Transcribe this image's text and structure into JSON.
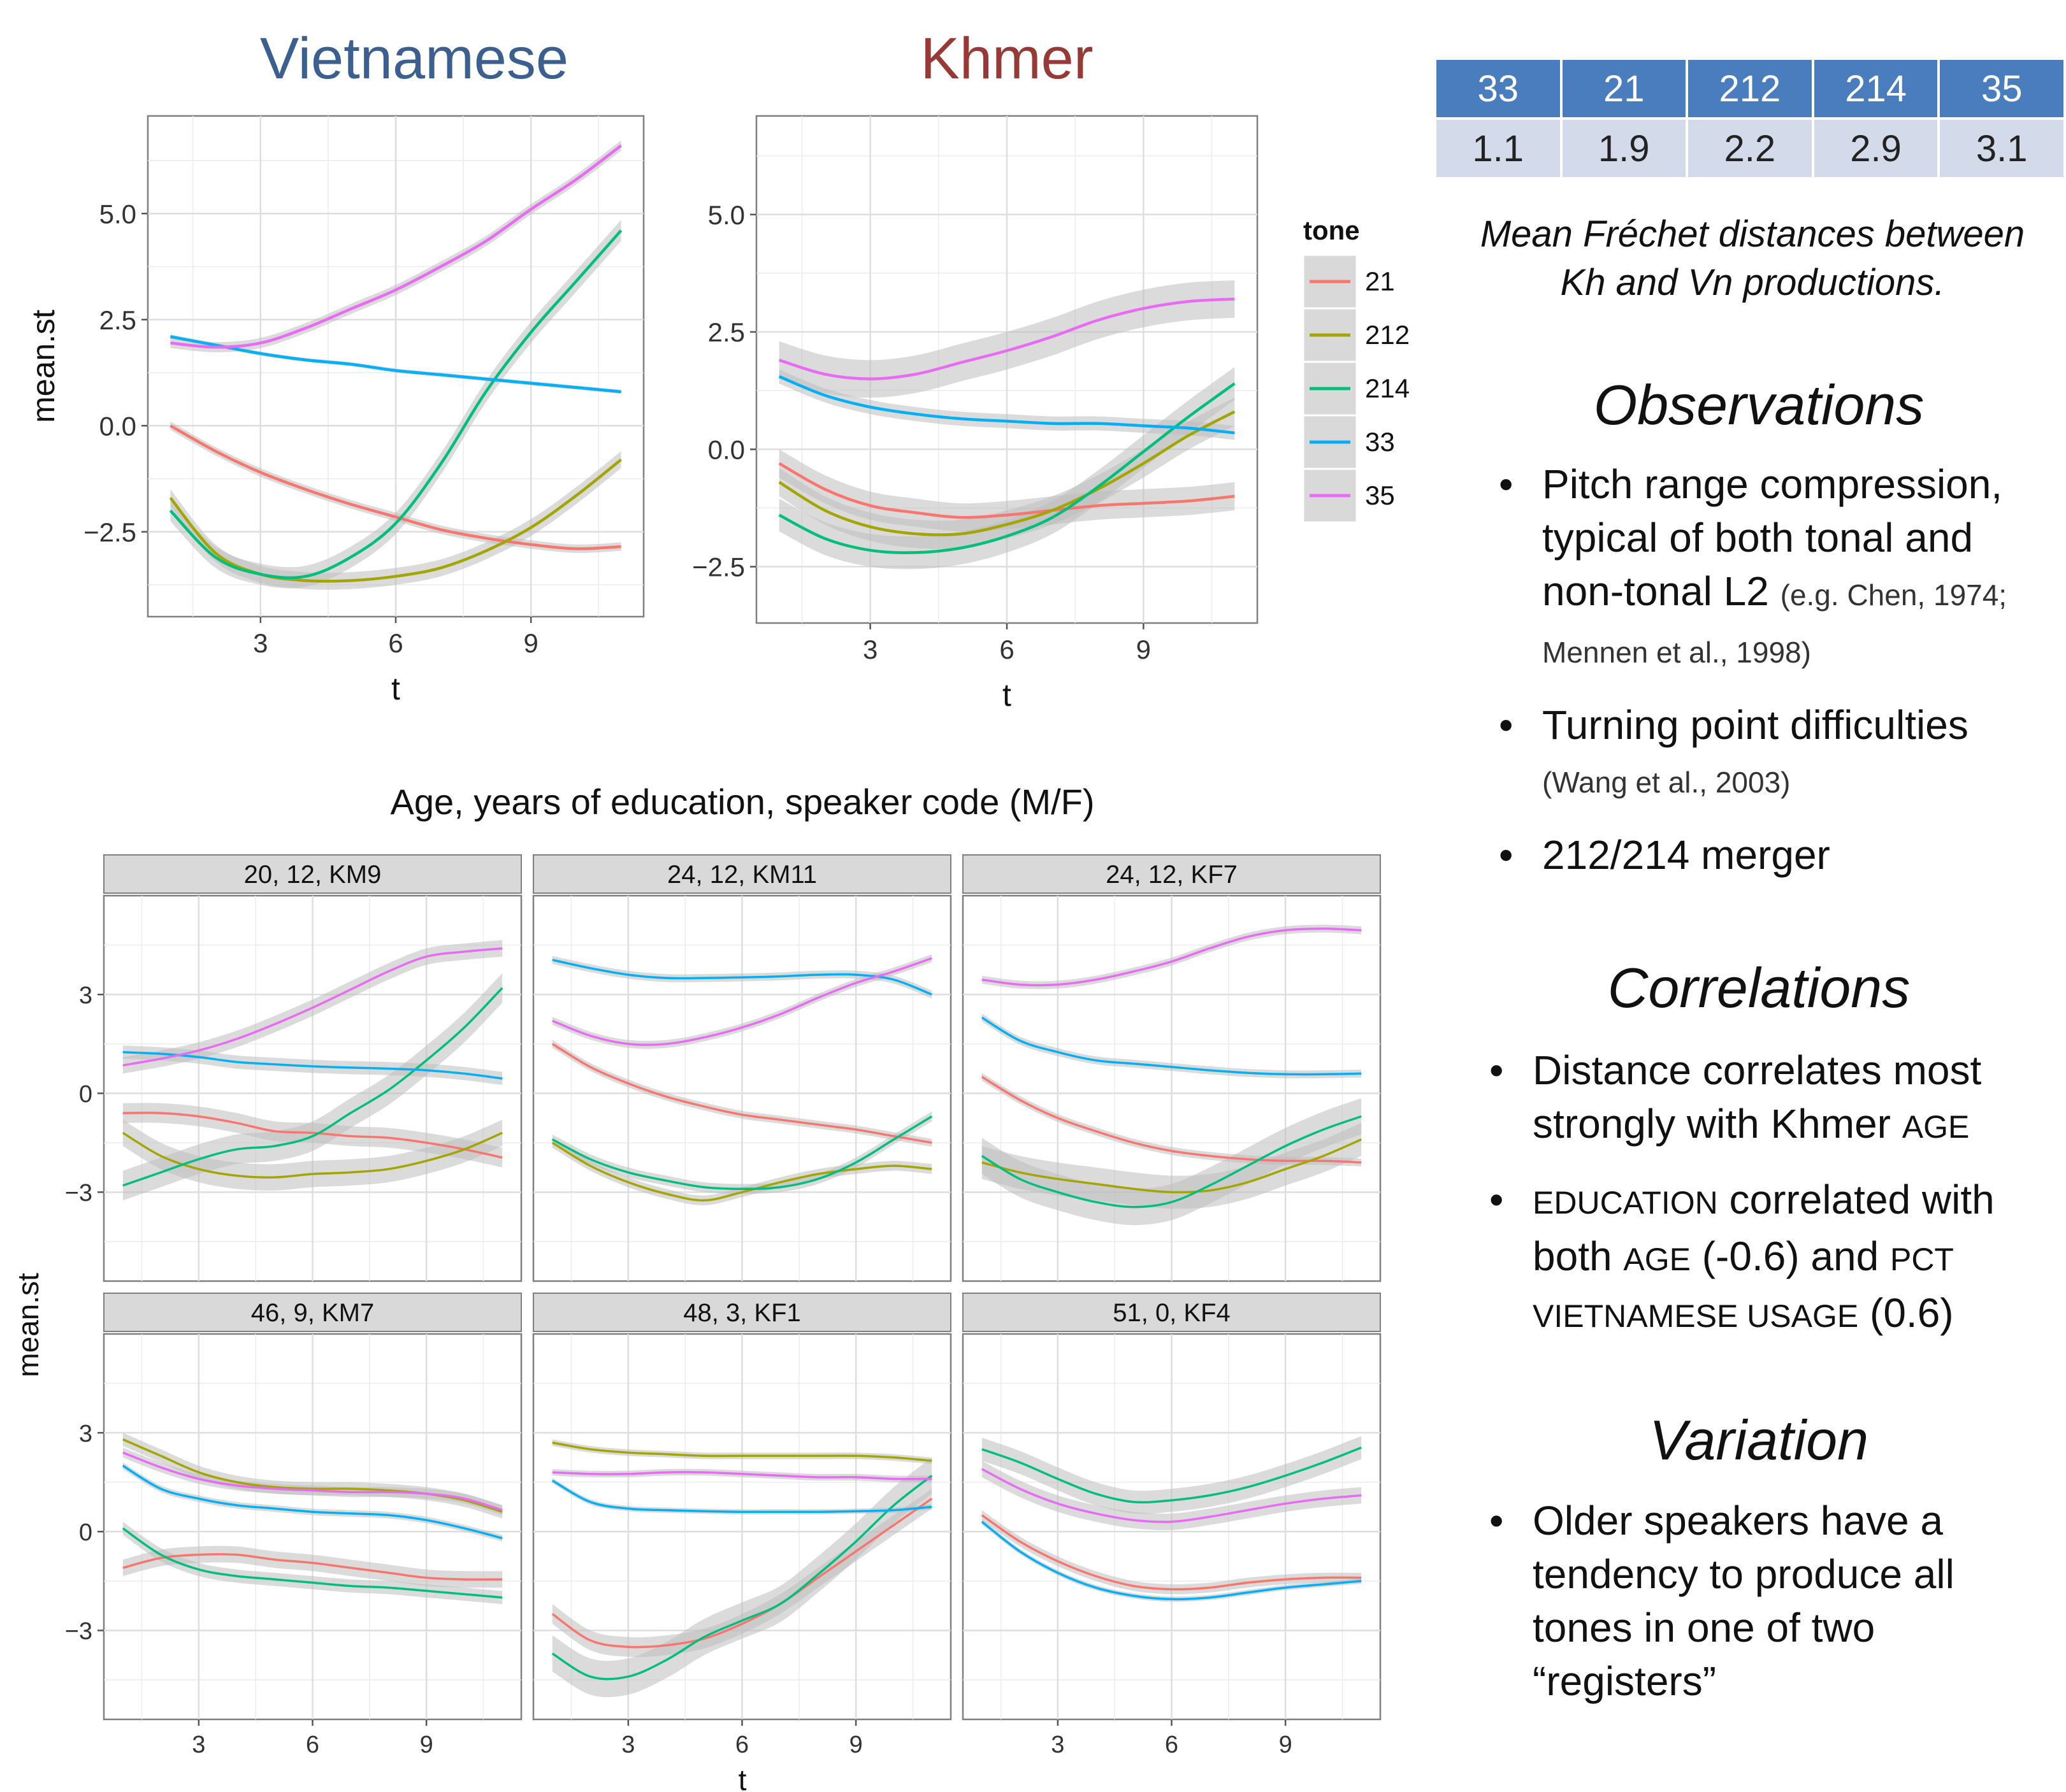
{
  "titles": {
    "vietnamese": "Vietnamese",
    "khmer": "Khmer",
    "facet_main": "Age, years of education, speaker code (M/F)"
  },
  "colors": {
    "vietnamese": "#3b5f8e",
    "khmer": "#973a36",
    "table_header": "#4a7dbd",
    "table_body": "#d3daea",
    "21": "#f8766d",
    "212": "#a3a500",
    "214": "#00bf7d",
    "33": "#00b0f6",
    "35": "#e76bf3"
  },
  "legend": {
    "title": "tone",
    "items": [
      "21",
      "212",
      "214",
      "33",
      "35"
    ]
  },
  "table": {
    "headers": [
      "33",
      "21",
      "212",
      "214",
      "35"
    ],
    "values": [
      "1.1",
      "1.9",
      "2.2",
      "2.9",
      "3.1"
    ]
  },
  "caption": {
    "line1": "Mean Fréchet distances between",
    "line2": "Kh and Vn productions."
  },
  "observations": {
    "title": "Observations",
    "b1_text": "Pitch range compression, typical of both tonal and non-tonal L2 ",
    "b1_cite": "(e.g. Chen, 1974; Mennen et al., 1998)",
    "b2_text": "Turning point difficulties ",
    "b2_cite": "(Wang et al., 2003)",
    "b3_text": "212/214 merger"
  },
  "correlations": {
    "title": "Correlations",
    "b1_pre": "Distance correlates most strongly with Khmer ",
    "b1_sc": "AGE",
    "b2_sc1": "EDUCATION",
    "b2_mid": " correlated with both ",
    "b2_sc2": "AGE",
    "b2_mid2": " (-0.6) and ",
    "b2_sc3": "PCT VIETNAMESE USAGE",
    "b2_end": " (0.6)"
  },
  "variation": {
    "title": "Variation",
    "b1_text": "Older speakers have a tendency to produce all tones in one of two “registers”"
  },
  "chart_data": [
    {
      "type": "line",
      "title": "Vietnamese",
      "xlabel": "t",
      "ylabel": "mean.st",
      "xlim": [
        0.5,
        11.5
      ],
      "ylim": [
        -4.5,
        7.3
      ],
      "xticks": [
        3,
        6,
        9
      ],
      "yticks": [
        -2.5,
        0.0,
        2.5,
        5.0
      ],
      "ytick_labels": [
        "−2.5",
        "0.0",
        "2.5",
        "5.0"
      ],
      "legend_position": "right",
      "grid": true,
      "series": [
        {
          "name": "21",
          "x": [
            1,
            2,
            3,
            4,
            5,
            6,
            7,
            8,
            9,
            10,
            11
          ],
          "y": [
            0.0,
            -0.6,
            -1.1,
            -1.5,
            -1.85,
            -2.15,
            -2.45,
            -2.65,
            -2.8,
            -2.9,
            -2.85
          ],
          "band": 0.1
        },
        {
          "name": "212",
          "x": [
            1,
            2,
            3,
            4,
            5,
            6,
            7,
            8,
            9,
            10,
            11
          ],
          "y": [
            -1.7,
            -3.0,
            -3.5,
            -3.65,
            -3.65,
            -3.55,
            -3.35,
            -2.95,
            -2.4,
            -1.65,
            -0.8
          ],
          "band": 0.2
        },
        {
          "name": "214",
          "x": [
            1,
            2,
            3,
            4,
            5,
            6,
            7,
            8,
            9,
            10,
            11
          ],
          "y": [
            -2.0,
            -3.1,
            -3.5,
            -3.55,
            -3.1,
            -2.3,
            -0.9,
            0.8,
            2.2,
            3.4,
            4.6
          ],
          "band": 0.25
        },
        {
          "name": "33",
          "x": [
            1,
            2,
            3,
            4,
            5,
            6,
            7,
            8,
            9,
            10,
            11
          ],
          "y": [
            2.1,
            1.9,
            1.7,
            1.55,
            1.45,
            1.3,
            1.2,
            1.1,
            1.0,
            0.9,
            0.8
          ],
          "band": 0.05
        },
        {
          "name": "35",
          "x": [
            1,
            2,
            3,
            4,
            5,
            6,
            7,
            8,
            9,
            10,
            11
          ],
          "y": [
            1.95,
            1.85,
            1.95,
            2.3,
            2.75,
            3.2,
            3.75,
            4.35,
            5.1,
            5.8,
            6.6
          ],
          "band": 0.12
        }
      ]
    },
    {
      "type": "line",
      "title": "Khmer",
      "xlabel": "t",
      "ylabel": "",
      "xlim": [
        0.5,
        11.5
      ],
      "ylim": [
        -3.7,
        7.1
      ],
      "xticks": [
        3,
        6,
        9
      ],
      "yticks": [
        -2.5,
        0.0,
        2.5,
        5.0
      ],
      "ytick_labels": [
        "−2.5",
        "0.0",
        "2.5",
        "5.0"
      ],
      "legend_position": "right",
      "grid": true,
      "series": [
        {
          "name": "21",
          "x": [
            1,
            2,
            3,
            4,
            5,
            6,
            7,
            8,
            9,
            10,
            11
          ],
          "y": [
            -0.3,
            -0.85,
            -1.2,
            -1.35,
            -1.45,
            -1.4,
            -1.3,
            -1.2,
            -1.15,
            -1.1,
            -1.0
          ],
          "band": 0.3
        },
        {
          "name": "212",
          "x": [
            1,
            2,
            3,
            4,
            5,
            6,
            7,
            8,
            9,
            10,
            11
          ],
          "y": [
            -0.7,
            -1.3,
            -1.65,
            -1.8,
            -1.8,
            -1.6,
            -1.3,
            -0.85,
            -0.3,
            0.3,
            0.8
          ],
          "band": 0.3
        },
        {
          "name": "214",
          "x": [
            1,
            2,
            3,
            4,
            5,
            6,
            7,
            8,
            9,
            10,
            11
          ],
          "y": [
            -1.4,
            -1.9,
            -2.15,
            -2.2,
            -2.1,
            -1.85,
            -1.45,
            -0.8,
            -0.05,
            0.7,
            1.4
          ],
          "band": 0.35
        },
        {
          "name": "33",
          "x": [
            1,
            2,
            3,
            4,
            5,
            6,
            7,
            8,
            9,
            10,
            11
          ],
          "y": [
            1.55,
            1.15,
            0.9,
            0.75,
            0.65,
            0.6,
            0.55,
            0.55,
            0.5,
            0.45,
            0.35
          ],
          "band": 0.15
        },
        {
          "name": "35",
          "x": [
            1,
            2,
            3,
            4,
            5,
            6,
            7,
            8,
            9,
            10,
            11
          ],
          "y": [
            1.9,
            1.6,
            1.5,
            1.6,
            1.85,
            2.1,
            2.4,
            2.75,
            3.0,
            3.15,
            3.2
          ],
          "band": 0.4
        }
      ]
    },
    {
      "type": "line",
      "title": "Age, years of education, speaker code (M/F)",
      "xlabel": "t",
      "ylabel": "mean.st",
      "xlim": [
        0.5,
        11.5
      ],
      "ylim": [
        -5.7,
        6.0
      ],
      "xticks": [
        3,
        6,
        9
      ],
      "yticks": [
        -3,
        0,
        3
      ],
      "ytick_labels": [
        "−3",
        "0",
        "3"
      ],
      "facets": [
        {
          "label": "20, 12, KM9",
          "series": [
            {
              "name": "21",
              "y": [
                -0.6,
                -0.6,
                -0.7,
                -0.9,
                -1.15,
                -1.2,
                -1.3,
                -1.35,
                -1.5,
                -1.7,
                -1.95
              ],
              "band": 0.3
            },
            {
              "name": "212",
              "y": [
                -1.2,
                -1.9,
                -2.3,
                -2.5,
                -2.55,
                -2.45,
                -2.4,
                -2.3,
                -2.05,
                -1.7,
                -1.2
              ],
              "band": 0.4
            },
            {
              "name": "214",
              "y": [
                -2.8,
                -2.4,
                -2.0,
                -1.7,
                -1.6,
                -1.3,
                -0.6,
                0.1,
                1.0,
                2.0,
                3.2
              ],
              "band": 0.45
            },
            {
              "name": "33",
              "y": [
                1.25,
                1.2,
                1.1,
                0.95,
                0.88,
                0.82,
                0.78,
                0.75,
                0.7,
                0.6,
                0.45
              ],
              "band": 0.2
            },
            {
              "name": "35",
              "y": [
                0.85,
                1.05,
                1.3,
                1.65,
                2.1,
                2.6,
                3.15,
                3.7,
                4.15,
                4.3,
                4.4
              ],
              "band": 0.25
            }
          ]
        },
        {
          "label": "24, 12, KM11",
          "series": [
            {
              "name": "21",
              "y": [
                1.5,
                0.8,
                0.3,
                -0.1,
                -0.4,
                -0.65,
                -0.8,
                -0.95,
                -1.1,
                -1.3,
                -1.5
              ],
              "band": 0.12
            },
            {
              "name": "212",
              "y": [
                -1.5,
                -2.2,
                -2.7,
                -3.05,
                -3.25,
                -3.0,
                -2.7,
                -2.45,
                -2.3,
                -2.2,
                -2.3
              ],
              "band": 0.15
            },
            {
              "name": "214",
              "y": [
                -1.4,
                -2.0,
                -2.4,
                -2.65,
                -2.85,
                -2.9,
                -2.85,
                -2.6,
                -2.1,
                -1.4,
                -0.7
              ],
              "band": 0.15
            },
            {
              "name": "33",
              "y": [
                4.05,
                3.8,
                3.6,
                3.5,
                3.5,
                3.52,
                3.55,
                3.6,
                3.6,
                3.45,
                3.0
              ],
              "band": 0.12
            },
            {
              "name": "35",
              "y": [
                2.2,
                1.75,
                1.5,
                1.5,
                1.7,
                2.0,
                2.4,
                2.9,
                3.35,
                3.7,
                4.1
              ],
              "band": 0.12
            }
          ]
        },
        {
          "label": "24, 12, KF7",
          "series": [
            {
              "name": "21",
              "y": [
                0.5,
                -0.2,
                -0.75,
                -1.15,
                -1.5,
                -1.75,
                -1.9,
                -2.0,
                -2.05,
                -2.05,
                -2.1
              ],
              "band": 0.12
            },
            {
              "name": "212",
              "y": [
                -2.1,
                -2.4,
                -2.6,
                -2.75,
                -2.9,
                -3.0,
                -2.95,
                -2.7,
                -2.3,
                -1.9,
                -1.4
              ],
              "band": 0.5
            },
            {
              "name": "214",
              "y": [
                -1.9,
                -2.6,
                -3.0,
                -3.3,
                -3.45,
                -3.3,
                -2.8,
                -2.2,
                -1.6,
                -1.1,
                -0.7
              ],
              "band": 0.55
            },
            {
              "name": "33",
              "y": [
                2.3,
                1.6,
                1.25,
                1.0,
                0.9,
                0.8,
                0.7,
                0.62,
                0.58,
                0.58,
                0.6
              ],
              "band": 0.12
            },
            {
              "name": "35",
              "y": [
                3.45,
                3.3,
                3.3,
                3.45,
                3.7,
                4.0,
                4.4,
                4.75,
                4.95,
                5.0,
                4.95
              ],
              "band": 0.12
            }
          ]
        },
        {
          "label": "46,  9, KM7",
          "series": [
            {
              "name": "21",
              "y": [
                -1.1,
                -0.8,
                -0.7,
                -0.7,
                -0.85,
                -0.95,
                -1.1,
                -1.25,
                -1.4,
                -1.45,
                -1.45
              ],
              "band": 0.25
            },
            {
              "name": "212",
              "y": [
                2.8,
                2.3,
                1.8,
                1.5,
                1.35,
                1.3,
                1.3,
                1.25,
                1.15,
                0.95,
                0.6
              ],
              "band": 0.2
            },
            {
              "name": "214",
              "y": [
                0.1,
                -0.7,
                -1.15,
                -1.35,
                -1.45,
                -1.55,
                -1.65,
                -1.7,
                -1.8,
                -1.9,
                -2.0
              ],
              "band": 0.2
            },
            {
              "name": "33",
              "y": [
                2.0,
                1.3,
                1.0,
                0.8,
                0.7,
                0.6,
                0.55,
                0.5,
                0.35,
                0.1,
                -0.2
              ],
              "band": 0.1
            },
            {
              "name": "35",
              "y": [
                2.4,
                1.95,
                1.6,
                1.4,
                1.3,
                1.25,
                1.2,
                1.2,
                1.15,
                1.0,
                0.65
              ],
              "band": 0.15
            }
          ]
        },
        {
          "label": "48,  3, KF1",
          "series": [
            {
              "name": "21",
              "y": [
                -2.5,
                -3.3,
                -3.5,
                -3.45,
                -3.25,
                -2.8,
                -2.2,
                -1.4,
                -0.6,
                0.2,
                1.0
              ],
              "band": 0.3
            },
            {
              "name": "212",
              "y": [
                2.7,
                2.5,
                2.4,
                2.35,
                2.3,
                2.3,
                2.3,
                2.3,
                2.3,
                2.25,
                2.15
              ],
              "band": 0.1
            },
            {
              "name": "214",
              "y": [
                -3.7,
                -4.4,
                -4.4,
                -3.9,
                -3.2,
                -2.7,
                -2.2,
                -1.3,
                -0.3,
                0.8,
                1.7
              ],
              "band": 0.55
            },
            {
              "name": "33",
              "y": [
                1.55,
                0.9,
                0.7,
                0.65,
                0.62,
                0.6,
                0.6,
                0.6,
                0.62,
                0.65,
                0.75
              ],
              "band": 0.08
            },
            {
              "name": "35",
              "y": [
                1.8,
                1.75,
                1.75,
                1.8,
                1.8,
                1.75,
                1.7,
                1.65,
                1.65,
                1.6,
                1.6
              ],
              "band": 0.1
            }
          ]
        },
        {
          "label": "51,  0, KF4",
          "series": [
            {
              "name": "21",
              "y": [
                0.5,
                -0.3,
                -0.9,
                -1.35,
                -1.65,
                -1.75,
                -1.7,
                -1.55,
                -1.45,
                -1.4,
                -1.4
              ],
              "band": 0.15
            },
            {
              "name": "212",
              "y": [],
              "band": 0
            },
            {
              "name": "214",
              "y": [
                2.5,
                2.1,
                1.6,
                1.15,
                0.9,
                0.95,
                1.1,
                1.35,
                1.7,
                2.1,
                2.55
              ],
              "band": 0.35
            },
            {
              "name": "33",
              "y": [
                0.3,
                -0.6,
                -1.25,
                -1.7,
                -1.95,
                -2.05,
                -2.0,
                -1.85,
                -1.7,
                -1.6,
                -1.5
              ],
              "band": 0.08
            },
            {
              "name": "35",
              "y": [
                1.9,
                1.3,
                0.85,
                0.55,
                0.35,
                0.3,
                0.45,
                0.65,
                0.85,
                1.0,
                1.1
              ],
              "band": 0.25
            }
          ]
        }
      ]
    }
  ]
}
